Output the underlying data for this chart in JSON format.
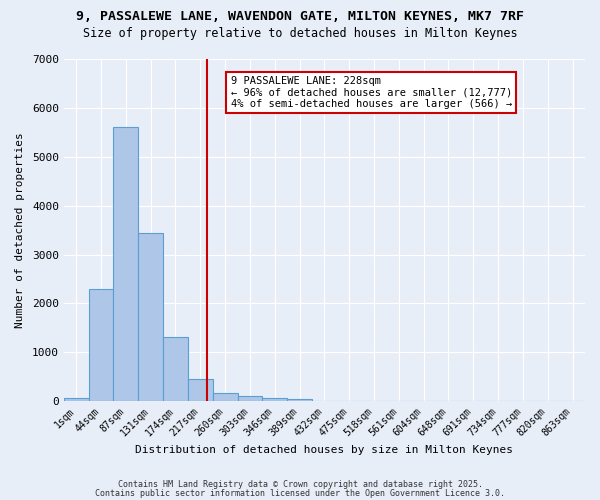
{
  "title_line1": "9, PASSALEWE LANE, WAVENDON GATE, MILTON KEYNES, MK7 7RF",
  "title_line2": "Size of property relative to detached houses in Milton Keynes",
  "xlabel": "Distribution of detached houses by size in Milton Keynes",
  "ylabel": "Number of detached properties",
  "bin_labels": [
    "1sqm",
    "44sqm",
    "87sqm",
    "131sqm",
    "174sqm",
    "217sqm",
    "260sqm",
    "303sqm",
    "346sqm",
    "389sqm",
    "432sqm",
    "475sqm",
    "518sqm",
    "561sqm",
    "604sqm",
    "648sqm",
    "691sqm",
    "734sqm",
    "777sqm",
    "820sqm",
    "863sqm"
  ],
  "bar_heights": [
    75,
    2300,
    5600,
    3450,
    1320,
    460,
    170,
    100,
    60,
    40,
    0,
    0,
    0,
    0,
    0,
    0,
    0,
    0,
    0,
    0,
    0
  ],
  "bar_color": "#aec6e8",
  "bar_edge_color": "#5a9fd4",
  "vline_color": "#cc0000",
  "vline_pos": 5.25,
  "annotation_text": "9 PASSALEWE LANE: 228sqm\n← 96% of detached houses are smaller (12,777)\n4% of semi-detached houses are larger (566) →",
  "annotation_box_color": "#cc0000",
  "ylim": [
    0,
    7000
  ],
  "yticks": [
    0,
    1000,
    2000,
    3000,
    4000,
    5000,
    6000,
    7000
  ],
  "bg_color": "#e8eef8",
  "footnote1": "Contains HM Land Registry data © Crown copyright and database right 2025.",
  "footnote2": "Contains public sector information licensed under the Open Government Licence 3.0."
}
